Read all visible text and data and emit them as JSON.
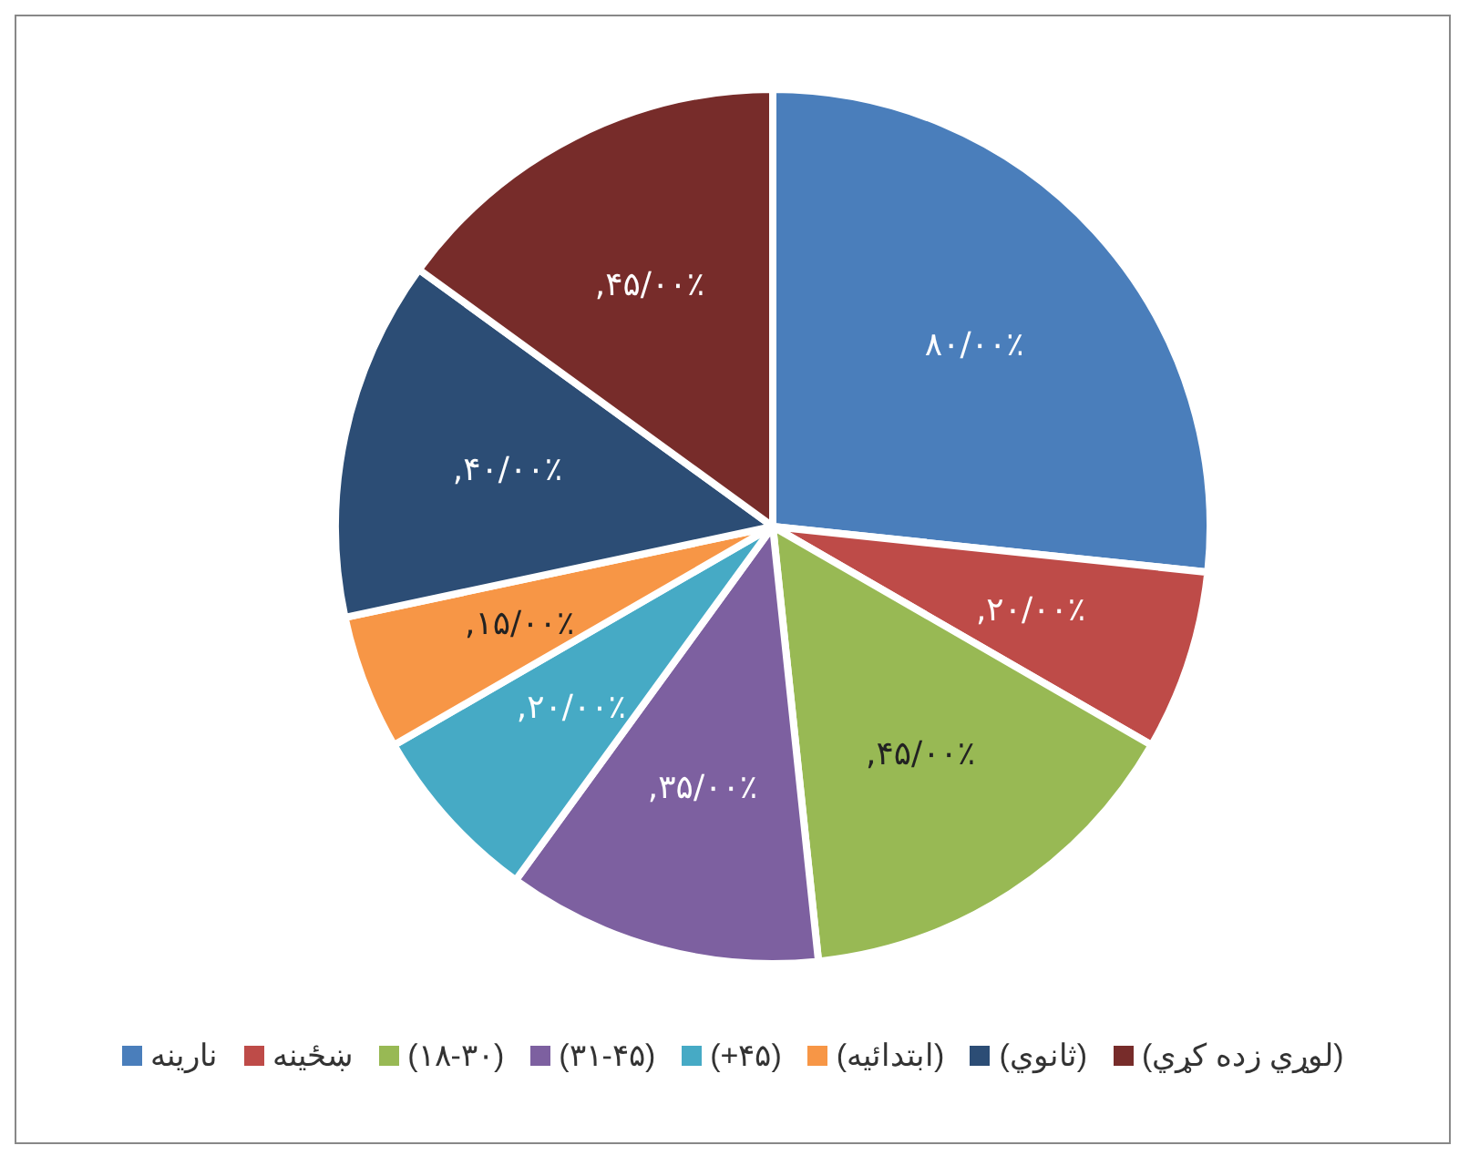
{
  "chart_data": {
    "type": "pie",
    "categories": [
      "نارينه",
      "ښځينه",
      "(۱۸-۳۰)",
      "(۳۱-۴۵)",
      "(+۴۵)",
      "(ابتدائيه)",
      "(ثانوي)",
      "(لوړي زده کړي)"
    ],
    "values": [
      80,
      20,
      45,
      35,
      20,
      15,
      40,
      45
    ],
    "value_labels": [
      "۸۰/۰۰٪",
      ",۲۰/۰۰٪",
      ",۴۵/۰۰٪",
      ",۳۵/۰۰٪",
      ",۲۰/۰۰٪",
      ",۱۵/۰۰٪",
      ",۴۰/۰۰٪",
      ",۴۵/۰۰٪"
    ],
    "colors": [
      "#4a7ebb",
      "#be4b48",
      "#98b954",
      "#7d60a0",
      "#46aac5",
      "#f79646",
      "#2c4d75",
      "#772c2a"
    ],
    "legend": "bottom"
  }
}
